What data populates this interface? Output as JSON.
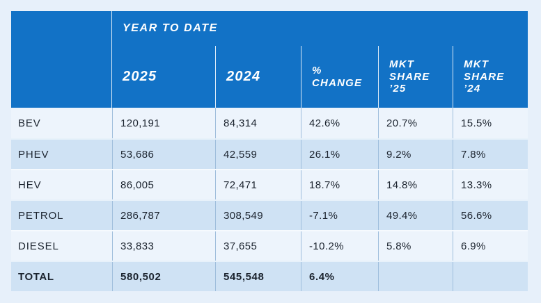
{
  "colors": {
    "page_bg": "#e7f0fa",
    "header_bg": "#1272c6",
    "header_text": "#ffffff",
    "row_light": "#edf4fc",
    "row_shaded": "#cfe2f4",
    "grid_line": "#9fbedc",
    "text_dark": "#1b232e"
  },
  "chart_data": {
    "type": "table",
    "group_header": "YEAR TO DATE",
    "columns": [
      "2025",
      "2024",
      "% CHANGE",
      "MKT SHARE ’25",
      "MKT SHARE ’24"
    ],
    "rows": [
      {
        "label": "BEV",
        "cells": [
          "120,191",
          "84,314",
          "42.6%",
          "20.7%",
          "15.5%"
        ]
      },
      {
        "label": "PHEV",
        "cells": [
          "53,686",
          "42,559",
          "26.1%",
          "9.2%",
          "7.8%"
        ]
      },
      {
        "label": "HEV",
        "cells": [
          "86,005",
          "72,471",
          "18.7%",
          "14.8%",
          "13.3%"
        ]
      },
      {
        "label": "PETROL",
        "cells": [
          "286,787",
          "308,549",
          "-7.1%",
          "49.4%",
          "56.6%"
        ]
      },
      {
        "label": "DIESEL",
        "cells": [
          "33,833",
          "37,655",
          "-10.2%",
          "5.8%",
          "6.9%"
        ]
      },
      {
        "label": "TOTAL",
        "cells": [
          "580,502",
          "545,548",
          "6.4%",
          "",
          ""
        ]
      }
    ]
  }
}
